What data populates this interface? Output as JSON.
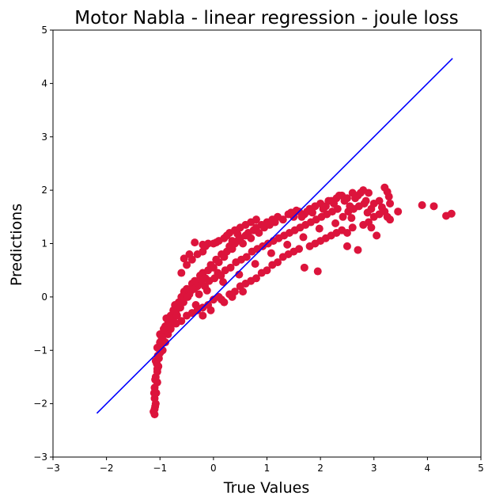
{
  "chart_data": {
    "type": "scatter",
    "title": "Motor Nabla - linear regression - joule loss",
    "xlabel": "True Values",
    "ylabel": "Predictions",
    "xlim": [
      -3,
      5
    ],
    "ylim": [
      -3,
      5
    ],
    "xticks": [
      -3,
      -2,
      -1,
      0,
      1,
      2,
      3,
      4,
      5
    ],
    "yticks": [
      -3,
      -2,
      -1,
      0,
      1,
      2,
      3,
      4,
      5
    ],
    "xtick_labels": [
      "−3",
      "−2",
      "−1",
      "0",
      "1",
      "2",
      "3",
      "4",
      "5"
    ],
    "ytick_labels": [
      "−3",
      "−2",
      "−1",
      "0",
      "1",
      "2",
      "3",
      "4",
      "5"
    ],
    "grid": false,
    "colors": {
      "points": "#dc143c",
      "reference_line": "#0000ff"
    },
    "reference_line": {
      "x": [
        -2.18,
        4.47
      ],
      "y": [
        -2.18,
        4.47
      ]
    },
    "series": [
      {
        "points": [
          [
            -1.1,
            -2.2
          ],
          [
            -1.1,
            -2.1
          ],
          [
            -1.08,
            -2.0
          ],
          [
            -1.1,
            -1.9
          ],
          [
            -1.07,
            -1.8
          ],
          [
            -1.1,
            -1.7
          ],
          [
            -1.05,
            -1.6
          ],
          [
            -1.08,
            -1.5
          ],
          [
            -1.05,
            -1.4
          ],
          [
            -1.03,
            -1.3
          ],
          [
            -1.08,
            -1.2
          ],
          [
            -1.02,
            -1.15
          ],
          [
            -1.0,
            -1.05
          ],
          [
            -1.05,
            -0.95
          ],
          [
            -0.98,
            -0.9
          ],
          [
            -0.95,
            -0.8
          ],
          [
            -1.0,
            -0.7
          ],
          [
            -0.92,
            -0.65
          ],
          [
            -0.9,
            -0.55
          ],
          [
            -0.85,
            -0.5
          ],
          [
            -0.88,
            -0.4
          ],
          [
            -0.8,
            -0.35
          ],
          [
            -0.75,
            -0.25
          ],
          [
            -0.7,
            -0.3
          ],
          [
            -0.72,
            -0.15
          ],
          [
            -0.65,
            -0.1
          ],
          [
            -0.6,
            0.0
          ],
          [
            -0.55,
            0.1
          ],
          [
            -0.5,
            0.15
          ],
          [
            -0.45,
            0.05
          ],
          [
            -0.4,
            0.25
          ],
          [
            -0.35,
            0.3
          ],
          [
            -0.3,
            0.2
          ],
          [
            -0.25,
            0.4
          ],
          [
            -0.2,
            0.45
          ],
          [
            -0.15,
            0.35
          ],
          [
            -0.1,
            0.5
          ],
          [
            -0.05,
            0.6
          ],
          [
            0.0,
            0.55
          ],
          [
            0.05,
            0.7
          ],
          [
            0.1,
            0.65
          ],
          [
            0.15,
            0.8
          ],
          [
            0.2,
            0.75
          ],
          [
            0.25,
            0.85
          ],
          [
            0.3,
            0.95
          ],
          [
            0.35,
            0.9
          ],
          [
            0.4,
            1.0
          ],
          [
            0.45,
            1.05
          ],
          [
            0.5,
            1.1
          ],
          [
            0.55,
            1.0
          ],
          [
            0.6,
            1.15
          ],
          [
            0.65,
            1.2
          ],
          [
            0.7,
            1.1
          ],
          [
            0.75,
            1.25
          ],
          [
            0.8,
            1.3
          ],
          [
            0.85,
            1.2
          ],
          [
            0.9,
            1.35
          ],
          [
            0.95,
            1.3
          ],
          [
            1.0,
            1.4
          ],
          [
            1.05,
            1.35
          ],
          [
            1.1,
            1.45
          ],
          [
            1.15,
            1.4
          ],
          [
            1.2,
            1.5
          ],
          [
            1.3,
            1.45
          ],
          [
            1.4,
            1.55
          ],
          [
            1.5,
            1.5
          ],
          [
            1.6,
            1.6
          ],
          [
            1.7,
            1.55
          ],
          [
            1.8,
            1.65
          ],
          [
            1.9,
            1.7
          ],
          [
            2.0,
            1.75
          ],
          [
            2.1,
            1.7
          ],
          [
            2.2,
            1.8
          ],
          [
            2.3,
            1.85
          ],
          [
            2.4,
            1.9
          ],
          [
            2.5,
            1.85
          ],
          [
            2.6,
            1.95
          ],
          [
            2.7,
            1.9
          ],
          [
            2.8,
            2.0
          ],
          [
            2.9,
            1.95
          ],
          [
            -0.6,
            0.45
          ],
          [
            -0.5,
            0.6
          ],
          [
            -0.4,
            0.7
          ],
          [
            -0.3,
            0.8
          ],
          [
            -0.2,
            0.85
          ],
          [
            -0.1,
            1.0
          ],
          [
            0.0,
            1.0
          ],
          [
            0.1,
            1.05
          ],
          [
            0.2,
            1.1
          ],
          [
            0.3,
            1.2
          ],
          [
            0.4,
            1.25
          ],
          [
            0.5,
            1.3
          ],
          [
            0.6,
            1.35
          ],
          [
            0.7,
            1.4
          ],
          [
            0.8,
            1.45
          ],
          [
            -0.35,
            1.02
          ],
          [
            -0.2,
            0.98
          ],
          [
            0.25,
            1.15
          ],
          [
            0.45,
            1.18
          ],
          [
            -0.8,
            -0.55
          ],
          [
            -0.7,
            -0.5
          ],
          [
            -0.6,
            -0.45
          ],
          [
            -0.5,
            -0.35
          ],
          [
            -0.4,
            -0.3
          ],
          [
            -0.3,
            -0.25
          ],
          [
            -0.2,
            -0.2
          ],
          [
            -0.1,
            -0.15
          ],
          [
            0.0,
            -0.05
          ],
          [
            0.1,
            0.0
          ],
          [
            0.2,
            -0.1
          ],
          [
            0.3,
            0.05
          ],
          [
            0.4,
            0.1
          ],
          [
            0.5,
            0.2
          ],
          [
            0.6,
            0.25
          ],
          [
            0.7,
            0.3
          ],
          [
            0.8,
            0.35
          ],
          [
            0.9,
            0.45
          ],
          [
            1.0,
            0.5
          ],
          [
            1.1,
            0.6
          ],
          [
            1.2,
            0.65
          ],
          [
            1.3,
            0.75
          ],
          [
            1.4,
            0.8
          ],
          [
            1.5,
            0.85
          ],
          [
            1.6,
            0.9
          ],
          [
            1.7,
            0.55
          ],
          [
            1.95,
            0.48
          ],
          [
            1.8,
            0.95
          ],
          [
            1.9,
            1.0
          ],
          [
            2.0,
            1.05
          ],
          [
            2.1,
            1.1
          ],
          [
            2.2,
            1.15
          ],
          [
            2.3,
            1.2
          ],
          [
            2.4,
            1.25
          ],
          [
            2.5,
            1.2
          ],
          [
            2.6,
            1.3
          ],
          [
            2.7,
            0.88
          ],
          [
            2.5,
            0.95
          ],
          [
            2.8,
            1.35
          ],
          [
            2.9,
            1.4
          ],
          [
            3.0,
            1.5
          ],
          [
            3.1,
            1.55
          ],
          [
            3.2,
            1.6
          ],
          [
            3.25,
            1.5
          ],
          [
            3.3,
            1.75
          ],
          [
            3.2,
            2.05
          ],
          [
            3.25,
            1.97
          ],
          [
            3.1,
            1.8
          ],
          [
            3.0,
            1.75
          ],
          [
            2.95,
            1.3
          ],
          [
            3.45,
            1.6
          ],
          [
            3.9,
            1.72
          ],
          [
            4.12,
            1.7
          ],
          [
            4.35,
            1.52
          ],
          [
            4.45,
            1.56
          ],
          [
            3.3,
            1.45
          ],
          [
            3.05,
            1.15
          ],
          [
            -0.95,
            -1.0
          ],
          [
            -0.9,
            -0.85
          ],
          [
            -0.85,
            -0.7
          ],
          [
            -0.8,
            -0.6
          ],
          [
            -0.75,
            -0.45
          ],
          [
            -0.68,
            -0.35
          ],
          [
            -0.62,
            -0.2
          ],
          [
            -0.56,
            -0.1
          ],
          [
            -0.48,
            0.0
          ],
          [
            -0.42,
            0.12
          ],
          [
            -0.36,
            0.15
          ],
          [
            -0.28,
            0.25
          ],
          [
            -0.22,
            0.3
          ],
          [
            -0.16,
            0.2
          ],
          [
            -0.08,
            0.3
          ],
          [
            0.02,
            0.35
          ],
          [
            0.08,
            0.45
          ],
          [
            0.14,
            0.4
          ],
          [
            0.22,
            0.5
          ],
          [
            0.32,
            0.55
          ],
          [
            0.42,
            0.65
          ],
          [
            0.52,
            0.7
          ],
          [
            0.62,
            0.75
          ],
          [
            0.72,
            0.85
          ],
          [
            0.82,
            0.9
          ],
          [
            0.92,
            0.95
          ],
          [
            1.02,
            1.0
          ],
          [
            1.12,
            1.05
          ],
          [
            1.22,
            1.1
          ],
          [
            1.32,
            1.15
          ],
          [
            1.42,
            1.2
          ],
          [
            1.52,
            1.25
          ],
          [
            1.62,
            1.3
          ],
          [
            1.72,
            1.35
          ],
          [
            1.82,
            1.4
          ],
          [
            1.92,
            1.45
          ],
          [
            2.02,
            1.5
          ],
          [
            2.12,
            1.55
          ],
          [
            2.22,
            1.6
          ],
          [
            2.32,
            1.65
          ],
          [
            2.42,
            1.5
          ],
          [
            2.52,
            1.6
          ],
          [
            2.62,
            1.65
          ],
          [
            2.72,
            1.7
          ],
          [
            2.82,
            1.75
          ],
          [
            -1.05,
            -1.35
          ],
          [
            -1.06,
            -1.25
          ],
          [
            -1.04,
            -1.1
          ],
          [
            -1.09,
            -1.55
          ],
          [
            -1.11,
            -1.8
          ],
          [
            -1.09,
            -2.05
          ],
          [
            -1.12,
            -2.15
          ],
          [
            -1.0,
            -0.85
          ],
          [
            -0.97,
            -0.75
          ],
          [
            -0.93,
            -0.6
          ],
          [
            -0.2,
            -0.35
          ],
          [
            -0.05,
            -0.25
          ],
          [
            0.15,
            -0.05
          ],
          [
            0.35,
            -0.0
          ],
          [
            0.55,
            0.1
          ],
          [
            -0.55,
            0.72
          ],
          [
            -0.45,
            0.8
          ],
          [
            -0.15,
            0.95
          ],
          [
            0.05,
            1.02
          ],
          [
            0.35,
            1.05
          ],
          [
            1.45,
            1.58
          ],
          [
            1.55,
            1.62
          ],
          [
            1.65,
            1.5
          ],
          [
            1.75,
            1.6
          ],
          [
            1.85,
            1.58
          ],
          [
            2.05,
            1.65
          ],
          [
            2.15,
            1.8
          ],
          [
            2.25,
            1.75
          ],
          [
            2.35,
            1.9
          ],
          [
            2.45,
            1.8
          ],
          [
            2.55,
            1.7
          ],
          [
            2.65,
            1.85
          ],
          [
            2.75,
            1.95
          ],
          [
            2.85,
            1.8
          ],
          [
            2.95,
            1.65
          ],
          [
            -0.33,
            -0.15
          ],
          [
            -0.27,
            0.05
          ],
          [
            -0.12,
            0.12
          ],
          [
            0.18,
            0.28
          ],
          [
            0.48,
            0.42
          ],
          [
            0.78,
            0.62
          ],
          [
            1.08,
            0.82
          ],
          [
            1.38,
            0.98
          ],
          [
            1.68,
            1.12
          ],
          [
            1.98,
            1.28
          ],
          [
            2.28,
            1.38
          ],
          [
            2.58,
            1.48
          ],
          [
            2.88,
            1.58
          ],
          [
            3.15,
            1.68
          ],
          [
            3.28,
            1.88
          ]
        ]
      }
    ]
  }
}
